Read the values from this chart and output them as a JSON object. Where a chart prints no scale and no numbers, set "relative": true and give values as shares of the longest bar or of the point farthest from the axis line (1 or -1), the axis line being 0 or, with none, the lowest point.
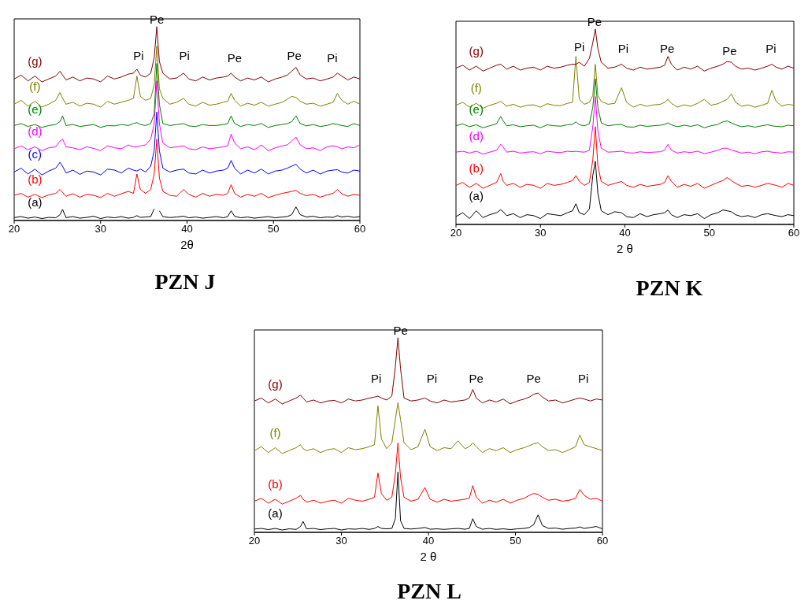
{
  "chart_data": [
    {
      "type": "line",
      "title": "PZN J",
      "xlabel": "2θ",
      "relative": true,
      "xlim": [
        20,
        60
      ],
      "xticks": [
        20,
        30,
        40,
        50,
        60
      ],
      "x": [
        20,
        20.8,
        21.6,
        22.4,
        23.2,
        24,
        24.8,
        25.3,
        25.6,
        26,
        26.8,
        27.6,
        28.4,
        29.2,
        30,
        30.8,
        31.6,
        32.4,
        33.2,
        33.8,
        34.2,
        34.6,
        35.2,
        35.8,
        36.2,
        36.5,
        36.8,
        37.2,
        38,
        38.8,
        39.6,
        40.2,
        41,
        41.8,
        42.6,
        43.4,
        44.2,
        44.7,
        45.1,
        45.5,
        46.2,
        47,
        47.8,
        48.6,
        49.4,
        50.2,
        51,
        51.6,
        52.1,
        52.6,
        53.1,
        53.8,
        54.6,
        55.4,
        56.2,
        56.9,
        57.4,
        57.9,
        58.6,
        59.3,
        60
      ],
      "series": [
        {
          "name": "(a)",
          "color": "#000000",
          "values": [
            0.015,
            0.02,
            0.012,
            0.018,
            0.01,
            0.016,
            0.014,
            0.03,
            0.057,
            0.015,
            0.02,
            0.012,
            0.016,
            0.022,
            0.01,
            0.018,
            0.014,
            0.02,
            0.012,
            0.016,
            0.025,
            0.016,
            0.018,
            0.02,
            0.06,
            null,
            0.05,
            0.02,
            0.015,
            0.018,
            0.022,
            0.014,
            0.018,
            0.012,
            0.016,
            0.02,
            0.014,
            0.02,
            0.05,
            0.022,
            0.014,
            0.018,
            0.012,
            0.016,
            0.02,
            0.014,
            0.018,
            0.02,
            0.03,
            0.07,
            0.03,
            0.018,
            0.022,
            0.014,
            0.018,
            0.016,
            0.025,
            0.018,
            0.022,
            0.016,
            0.02
          ]
        },
        {
          "name": "(b)",
          "color": "#ff0000",
          "values": [
            0.13,
            0.14,
            0.12,
            0.135,
            0.118,
            0.132,
            0.14,
            0.16,
            0.145,
            0.125,
            0.138,
            0.12,
            0.135,
            0.13,
            0.118,
            0.14,
            0.125,
            0.138,
            0.15,
            0.14,
            0.24,
            0.16,
            0.14,
            0.16,
            0.24,
            0.42,
            0.22,
            0.15,
            0.13,
            0.125,
            0.16,
            0.135,
            0.12,
            0.14,
            0.125,
            0.135,
            0.13,
            0.14,
            0.185,
            0.14,
            0.12,
            0.135,
            0.125,
            0.14,
            0.118,
            0.13,
            0.14,
            0.145,
            0.15,
            0.155,
            0.14,
            0.128,
            0.135,
            0.12,
            0.132,
            0.14,
            0.16,
            0.138,
            0.125,
            0.135,
            0.13
          ]
        },
        {
          "name": "(c)",
          "color": "#0000ff",
          "values": [
            0.25,
            0.27,
            0.24,
            0.265,
            0.235,
            0.255,
            0.27,
            0.3,
            0.28,
            0.245,
            0.26,
            0.238,
            0.255,
            0.25,
            0.235,
            0.265,
            0.26,
            0.245,
            0.27,
            0.26,
            0.255,
            0.265,
            0.25,
            0.28,
            0.36,
            0.56,
            0.36,
            0.27,
            0.25,
            0.26,
            0.265,
            0.245,
            0.24,
            0.26,
            0.245,
            0.255,
            0.26,
            0.27,
            0.31,
            0.27,
            0.24,
            0.26,
            0.245,
            0.265,
            0.24,
            0.255,
            0.26,
            0.27,
            0.28,
            0.29,
            0.265,
            0.245,
            0.26,
            0.24,
            0.255,
            0.26,
            0.262,
            0.25,
            0.245,
            0.26,
            0.255
          ]
        },
        {
          "name": "(d)",
          "color": "#ff00ff",
          "values": [
            0.37,
            0.385,
            0.365,
            0.38,
            0.36,
            0.375,
            0.38,
            0.41,
            0.42,
            0.38,
            0.375,
            0.365,
            0.38,
            0.372,
            0.36,
            0.385,
            0.375,
            0.37,
            0.39,
            0.38,
            0.38,
            0.385,
            0.39,
            0.42,
            0.5,
            0.72,
            0.5,
            0.4,
            0.375,
            0.38,
            0.385,
            0.37,
            0.365,
            0.38,
            0.37,
            0.375,
            0.38,
            0.385,
            0.446,
            0.4,
            0.37,
            0.38,
            0.365,
            0.39,
            0.36,
            0.375,
            0.385,
            0.39,
            0.41,
            0.43,
            0.39,
            0.37,
            0.375,
            0.36,
            0.38,
            0.385,
            0.38,
            0.37,
            0.38,
            0.375,
            0.39
          ]
        },
        {
          "name": "(e)",
          "color": "#008000",
          "values": [
            0.49,
            0.5,
            0.485,
            0.495,
            0.48,
            0.49,
            0.495,
            0.51,
            0.54,
            0.49,
            0.495,
            0.485,
            0.49,
            0.495,
            0.48,
            0.49,
            0.488,
            0.495,
            0.49,
            0.5,
            0.505,
            0.495,
            0.49,
            0.5,
            0.55,
            0.81,
            0.6,
            0.5,
            0.49,
            0.495,
            0.5,
            0.488,
            0.485,
            0.495,
            0.49,
            0.49,
            0.495,
            0.5,
            0.54,
            0.5,
            0.485,
            0.495,
            0.49,
            0.5,
            0.48,
            0.49,
            0.495,
            0.5,
            0.51,
            0.54,
            0.5,
            0.488,
            0.495,
            0.485,
            0.49,
            0.5,
            0.495,
            0.49,
            0.485,
            0.5,
            0.49
          ]
        },
        {
          "name": "(f)",
          "color": "#808000",
          "values": [
            0.6,
            0.62,
            0.59,
            0.615,
            0.585,
            0.6,
            0.62,
            0.66,
            0.63,
            0.6,
            0.61,
            0.59,
            0.605,
            0.6,
            0.585,
            0.615,
            0.6,
            0.61,
            0.62,
            0.63,
            0.745,
            0.64,
            0.62,
            0.63,
            0.7,
            0.9,
            0.68,
            0.63,
            0.6,
            0.61,
            0.63,
            0.6,
            0.59,
            0.61,
            0.595,
            0.6,
            0.61,
            0.615,
            0.656,
            0.62,
            0.59,
            0.605,
            0.595,
            0.61,
            0.59,
            0.6,
            0.61,
            0.625,
            0.64,
            0.635,
            0.615,
            0.6,
            0.605,
            0.59,
            0.6,
            0.61,
            0.656,
            0.62,
            0.6,
            0.615,
            0.6
          ]
        },
        {
          "name": "(g)",
          "color": "#800000",
          "values": [
            0.73,
            0.75,
            0.72,
            0.745,
            0.715,
            0.73,
            0.745,
            0.77,
            0.75,
            0.725,
            0.74,
            0.72,
            0.735,
            0.73,
            0.715,
            0.745,
            0.73,
            0.74,
            0.755,
            0.76,
            0.78,
            0.75,
            0.74,
            0.76,
            0.84,
            1,
            0.82,
            0.76,
            0.73,
            0.735,
            0.76,
            0.73,
            0.72,
            0.74,
            0.725,
            0.735,
            0.74,
            0.745,
            0.76,
            0.74,
            0.72,
            0.735,
            0.725,
            0.74,
            0.715,
            0.73,
            0.74,
            0.75,
            0.77,
            0.79,
            0.75,
            0.73,
            0.735,
            0.72,
            0.73,
            0.74,
            0.76,
            0.745,
            0.725,
            0.74,
            0.73
          ]
        }
      ],
      "annotations": [
        "Pi",
        "Pe",
        "Pi",
        "Pe",
        "Pe",
        "Pi"
      ]
    },
    {
      "type": "line",
      "title": "PZN K",
      "xlabel": "2 θ",
      "relative": true,
      "xlim": [
        20,
        60
      ],
      "xticks": [
        20,
        30,
        40,
        50,
        60
      ],
      "x": [
        20,
        20.8,
        21.6,
        22.4,
        23.2,
        24,
        24.8,
        25.3,
        25.6,
        26,
        26.8,
        27.6,
        28.4,
        29.2,
        30,
        30.8,
        31.6,
        32.4,
        33.2,
        33.8,
        34.2,
        34.6,
        35.2,
        35.8,
        36.2,
        36.5,
        36.8,
        37.2,
        38,
        38.8,
        39.6,
        40.2,
        41,
        41.8,
        42.6,
        43.4,
        44.2,
        44.7,
        45.1,
        45.5,
        46.2,
        47,
        47.8,
        48.6,
        49.4,
        50.2,
        51,
        51.6,
        52.1,
        52.6,
        53.1,
        53.8,
        54.6,
        55.4,
        56.2,
        56.9,
        57.4,
        57.9,
        58.6,
        59.3,
        60
      ],
      "series": [
        {
          "name": "(a)",
          "color": "#000000",
          "values": [
            0.04,
            0.06,
            0.03,
            0.07,
            0.035,
            0.05,
            0.06,
            0.075,
            0.065,
            0.045,
            0.055,
            0.035,
            0.05,
            0.045,
            0.03,
            0.055,
            0.05,
            0.045,
            0.06,
            0.07,
            0.106,
            0.06,
            0.05,
            0.08,
            0.25,
            0.323,
            0.16,
            0.07,
            0.05,
            0.065,
            0.06,
            0.04,
            0.035,
            0.055,
            0.04,
            0.05,
            0.055,
            0.06,
            0.074,
            0.05,
            0.035,
            0.05,
            0.045,
            0.055,
            0.03,
            0.05,
            0.06,
            0.074,
            0.07,
            0.065,
            0.05,
            0.04,
            0.045,
            0.035,
            0.05,
            0.055,
            0.05,
            0.045,
            0.04,
            0.05,
            0.045
          ]
        },
        {
          "name": "(b)",
          "color": "#ff0000",
          "values": [
            0.2,
            0.215,
            0.19,
            0.21,
            0.185,
            0.2,
            0.215,
            0.26,
            0.22,
            0.2,
            0.21,
            0.19,
            0.205,
            0.2,
            0.185,
            0.21,
            0.2,
            0.205,
            0.215,
            0.225,
            0.25,
            0.22,
            0.2,
            0.215,
            0.33,
            0.5,
            0.3,
            0.22,
            0.2,
            0.21,
            0.22,
            0.2,
            0.19,
            0.205,
            0.195,
            0.2,
            0.205,
            0.215,
            0.25,
            0.22,
            0.19,
            0.205,
            0.195,
            0.21,
            0.185,
            0.2,
            0.215,
            0.225,
            0.24,
            0.225,
            0.21,
            0.195,
            0.2,
            0.19,
            0.2,
            0.21,
            0.205,
            0.2,
            0.19,
            0.21,
            0.2
          ]
        },
        {
          "name": "(d)",
          "color": "#ff00ff",
          "values": [
            0.37,
            0.375,
            0.365,
            0.375,
            0.36,
            0.37,
            0.38,
            0.41,
            0.395,
            0.37,
            0.375,
            0.365,
            0.37,
            0.372,
            0.362,
            0.375,
            0.37,
            0.368,
            0.375,
            0.372,
            0.375,
            0.372,
            0.37,
            0.38,
            0.5,
            0.655,
            0.48,
            0.39,
            0.37,
            0.372,
            0.375,
            0.368,
            0.365,
            0.372,
            0.368,
            0.37,
            0.372,
            0.38,
            0.41,
            0.38,
            0.365,
            0.372,
            0.368,
            0.375,
            0.362,
            0.37,
            0.38,
            0.39,
            0.39,
            0.38,
            0.375,
            0.365,
            0.37,
            0.362,
            0.372,
            0.375,
            0.37,
            0.368,
            0.365,
            0.372,
            0.37
          ]
        },
        {
          "name": "(e)",
          "color": "#008000",
          "values": [
            0.505,
            0.515,
            0.5,
            0.51,
            0.495,
            0.505,
            0.515,
            0.553,
            0.53,
            0.505,
            0.51,
            0.5,
            0.505,
            0.508,
            0.495,
            0.51,
            0.505,
            0.503,
            0.51,
            0.512,
            0.525,
            0.51,
            0.505,
            0.515,
            0.6,
            0.745,
            0.6,
            0.52,
            0.505,
            0.51,
            0.512,
            0.5,
            0.498,
            0.508,
            0.502,
            0.505,
            0.508,
            0.512,
            0.52,
            0.51,
            0.5,
            0.508,
            0.502,
            0.51,
            0.495,
            0.505,
            0.512,
            0.525,
            0.53,
            0.52,
            0.51,
            0.5,
            0.505,
            0.498,
            0.505,
            0.51,
            0.505,
            0.502,
            0.5,
            0.508,
            0.505
          ]
        },
        {
          "name": "(f)",
          "color": "#808000",
          "values": [
            0.61,
            0.625,
            0.6,
            0.62,
            0.595,
            0.61,
            0.62,
            0.63,
            0.62,
            0.605,
            0.615,
            0.6,
            0.61,
            0.612,
            0.6,
            0.618,
            0.61,
            0.608,
            0.62,
            0.625,
            0.86,
            0.64,
            0.615,
            0.625,
            0.66,
            0.82,
            0.66,
            0.63,
            0.615,
            0.62,
            0.7,
            0.625,
            0.6,
            0.615,
            0.605,
            0.612,
            0.615,
            0.625,
            0.64,
            0.62,
            0.6,
            0.612,
            0.605,
            0.62,
            0.64,
            0.61,
            0.618,
            0.63,
            0.64,
            0.668,
            0.625,
            0.605,
            0.612,
            0.6,
            0.61,
            0.62,
            0.687,
            0.63,
            0.605,
            0.615,
            0.61
          ]
        },
        {
          "name": "(g)",
          "color": "#800000",
          "values": [
            0.8,
            0.815,
            0.79,
            0.81,
            0.785,
            0.8,
            0.815,
            0.82,
            0.81,
            0.795,
            0.81,
            0.79,
            0.8,
            0.805,
            0.79,
            0.81,
            0.8,
            0.805,
            0.815,
            0.82,
            0.82,
            0.83,
            0.81,
            0.85,
            0.93,
            1,
            0.9,
            0.83,
            0.8,
            0.805,
            0.82,
            0.8,
            0.79,
            0.805,
            0.795,
            0.8,
            0.805,
            0.815,
            0.86,
            0.82,
            0.79,
            0.805,
            0.795,
            0.81,
            0.785,
            0.8,
            0.81,
            0.82,
            0.834,
            0.83,
            0.81,
            0.795,
            0.8,
            0.79,
            0.8,
            0.81,
            0.82,
            0.805,
            0.795,
            0.81,
            0.8
          ]
        }
      ],
      "annotations": [
        "Pi",
        "Pe",
        "Pi",
        "Pe",
        "Pe",
        "Pi"
      ]
    },
    {
      "type": "line",
      "title": "PZN L",
      "xlabel": "2 θ",
      "relative": true,
      "xlim": [
        20,
        60
      ],
      "xticks": [
        20,
        30,
        40,
        50,
        60
      ],
      "x": [
        20,
        20.8,
        21.6,
        22.4,
        23.2,
        24,
        24.8,
        25.3,
        25.6,
        26,
        26.8,
        27.6,
        28.4,
        29.2,
        30,
        30.8,
        31.6,
        32.4,
        33.2,
        33.8,
        34.2,
        34.6,
        35.2,
        35.8,
        36.2,
        36.5,
        36.8,
        37.2,
        38,
        38.8,
        39.6,
        40.2,
        41,
        41.8,
        42.6,
        43.4,
        44.2,
        44.7,
        45.1,
        45.5,
        46.2,
        47,
        47.8,
        48.6,
        49.4,
        50.2,
        51,
        51.6,
        52.1,
        52.6,
        53.1,
        53.8,
        54.6,
        55.4,
        56.2,
        56.9,
        57.4,
        57.9,
        58.6,
        59.3,
        60
      ],
      "series": [
        {
          "name": "(a)",
          "color": "#000000",
          "values": [
            0.017,
            0.02,
            0.014,
            0.02,
            0.012,
            0.018,
            0.015,
            0.03,
            0.056,
            0.018,
            0.02,
            0.014,
            0.018,
            0.02,
            0.012,
            0.018,
            0.016,
            0.02,
            0.015,
            0.02,
            0.03,
            0.02,
            0.018,
            0.02,
            0.07,
            0.31,
            0.06,
            0.02,
            0.017,
            0.02,
            0.025,
            0.016,
            0.018,
            0.015,
            0.018,
            0.02,
            0.016,
            0.02,
            0.07,
            0.03,
            0.016,
            0.02,
            0.015,
            0.018,
            0.014,
            0.018,
            0.02,
            0.025,
            0.04,
            0.09,
            0.035,
            0.02,
            0.022,
            0.016,
            0.02,
            0.022,
            0.028,
            0.02,
            0.025,
            0.03,
            0.018
          ]
        },
        {
          "name": "(b)",
          "color": "#ff0000",
          "values": [
            0.16,
            0.175,
            0.15,
            0.17,
            0.145,
            0.16,
            0.175,
            0.19,
            0.17,
            0.155,
            0.165,
            0.15,
            0.16,
            0.165,
            0.15,
            0.175,
            0.165,
            0.16,
            0.17,
            0.18,
            0.305,
            0.2,
            0.165,
            0.18,
            0.3,
            0.46,
            0.28,
            0.18,
            0.16,
            0.17,
            0.23,
            0.17,
            0.155,
            0.17,
            0.16,
            0.165,
            0.17,
            0.175,
            0.24,
            0.18,
            0.15,
            0.165,
            0.155,
            0.17,
            0.15,
            0.165,
            0.175,
            0.19,
            0.2,
            0.195,
            0.18,
            0.165,
            0.17,
            0.16,
            0.165,
            0.175,
            0.22,
            0.19,
            0.17,
            0.175,
            0.16
          ]
        },
        {
          "name": "(f)",
          "color": "#808000",
          "values": [
            0.42,
            0.44,
            0.41,
            0.435,
            0.405,
            0.42,
            0.435,
            0.45,
            0.43,
            0.42,
            0.43,
            0.41,
            0.425,
            0.43,
            0.41,
            0.435,
            0.425,
            0.43,
            0.44,
            0.45,
            0.65,
            0.48,
            0.43,
            0.46,
            0.58,
            0.666,
            0.58,
            0.46,
            0.425,
            0.44,
            0.53,
            0.44,
            0.42,
            0.435,
            0.43,
            0.47,
            0.43,
            0.44,
            0.46,
            0.44,
            0.41,
            0.43,
            0.42,
            0.435,
            0.41,
            0.425,
            0.435,
            0.445,
            0.455,
            0.46,
            0.44,
            0.42,
            0.425,
            0.41,
            0.425,
            0.44,
            0.5,
            0.45,
            0.44,
            0.43,
            0.42
          ]
        },
        {
          "name": "(g)",
          "color": "#800000",
          "values": [
            0.675,
            0.69,
            0.665,
            0.685,
            0.66,
            0.675,
            0.69,
            0.705,
            0.69,
            0.67,
            0.68,
            0.665,
            0.675,
            0.678,
            0.665,
            0.685,
            0.675,
            0.68,
            0.69,
            0.695,
            0.7,
            0.69,
            0.68,
            0.7,
            0.85,
            1,
            0.84,
            0.69,
            0.675,
            0.68,
            0.69,
            0.675,
            0.665,
            0.68,
            0.67,
            0.675,
            0.68,
            0.69,
            0.734,
            0.69,
            0.665,
            0.68,
            0.67,
            0.685,
            0.66,
            0.675,
            0.685,
            0.695,
            0.71,
            0.716,
            0.695,
            0.675,
            0.68,
            0.665,
            0.675,
            0.685,
            0.69,
            0.685,
            0.675,
            0.685,
            0.68
          ]
        }
      ],
      "annotations": [
        "Pi",
        "Pe",
        "Pi",
        "Pe",
        "Pe",
        "Pi"
      ]
    }
  ]
}
